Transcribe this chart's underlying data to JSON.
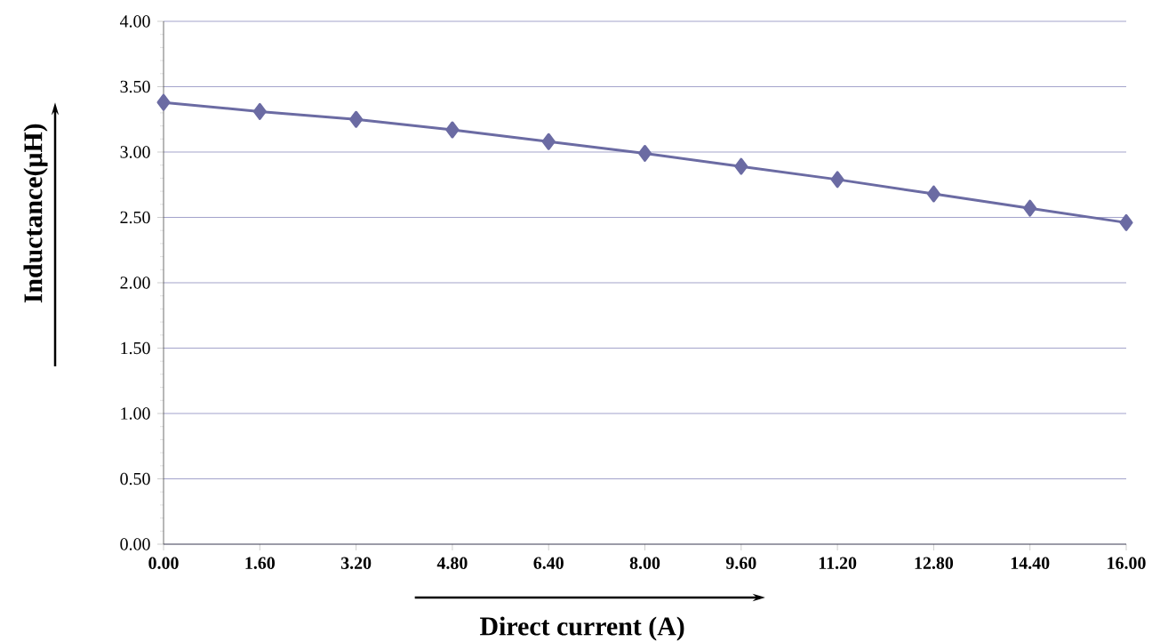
{
  "chart_data": {
    "type": "line",
    "xlabel": "Direct  current (A)",
    "ylabel": "Inductance(μH)",
    "x": [
      0,
      1.6,
      3.2,
      4.8,
      6.4,
      8.0,
      9.6,
      11.2,
      12.8,
      14.4,
      16.0
    ],
    "series": [
      {
        "color": "#6b6ba3",
        "values": [
          3.38,
          3.31,
          3.25,
          3.17,
          3.08,
          2.99,
          2.89,
          2.79,
          2.68,
          2.57,
          2.46
        ]
      }
    ],
    "xlim": [
      0,
      16
    ],
    "ylim": [
      0,
      4
    ],
    "xticks": [
      {
        "value": 0,
        "label": "0.00"
      },
      {
        "value": 1.6,
        "label": "1.60"
      },
      {
        "value": 3.2,
        "label": "3.20"
      },
      {
        "value": 4.8,
        "label": "4.80"
      },
      {
        "value": 6.4,
        "label": "6.40"
      },
      {
        "value": 8.0,
        "label": "8.00"
      },
      {
        "value": 9.6,
        "label": "9.60"
      },
      {
        "value": 11.2,
        "label": "11.20"
      },
      {
        "value": 12.8,
        "label": "12.80"
      },
      {
        "value": 14.4,
        "label": "14.40"
      },
      {
        "value": 16,
        "label": "16.00"
      }
    ],
    "yticks": [
      {
        "value": 0,
        "label": "0.00"
      },
      {
        "value": 0.5,
        "label": "0.50"
      },
      {
        "value": 1,
        "label": "1.00"
      },
      {
        "value": 1.5,
        "label": "1.50"
      },
      {
        "value": 2,
        "label": "2.00"
      },
      {
        "value": 2.5,
        "label": "2.50"
      },
      {
        "value": 3,
        "label": "3.00"
      },
      {
        "value": 3.5,
        "label": "3.50"
      },
      {
        "value": 4,
        "label": "4.00"
      }
    ],
    "grid": "y",
    "marker": "diamond",
    "line_style": "solid"
  }
}
